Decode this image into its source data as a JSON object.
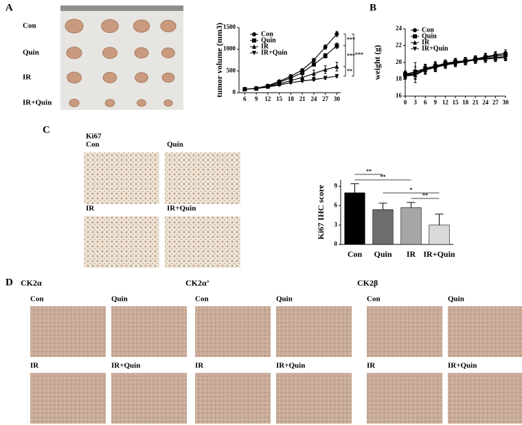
{
  "panel_labels": [
    "A",
    "B",
    "C",
    "D"
  ],
  "photo": {
    "labels": [
      "Con",
      "Quin",
      "IR",
      "IR+Quin"
    ]
  },
  "ki67_images": {
    "title": "Ki67",
    "labels": [
      "Con",
      "Quin",
      "IR",
      "IR+Quin"
    ]
  },
  "ck2_images": [
    {
      "title": "CK2α",
      "labels": [
        "Con",
        "Quin",
        "IR",
        "IR+Quin"
      ]
    },
    {
      "title": "CK2α’",
      "labels": [
        "Con",
        "Quin",
        "IR",
        "IR+Quin"
      ]
    },
    {
      "title": "CK2β",
      "labels": [
        "Con",
        "Quin",
        "IR",
        "IR+Quin"
      ]
    }
  ],
  "chart_data": [
    {
      "type": "line",
      "y_label": "tumor volume (mm3)",
      "x": [
        6,
        9,
        12,
        15,
        18,
        21,
        24,
        27,
        30
      ],
      "xlim": [
        4.5,
        31
      ],
      "xticks": [
        6,
        9,
        12,
        15,
        18,
        21,
        24,
        27,
        30
      ],
      "ylim": [
        0,
        1500
      ],
      "yticks": [
        0,
        500,
        1000,
        1500
      ],
      "series": [
        {
          "name": "Con",
          "color": "#000000",
          "marker": "circle",
          "values": [
            80,
            100,
            160,
            260,
            380,
            520,
            750,
            1050,
            1350
          ],
          "errors": [
            10,
            10,
            15,
            20,
            25,
            30,
            40,
            50,
            60
          ]
        },
        {
          "name": "Quin",
          "color": "#000000",
          "marker": "square",
          "values": [
            80,
            100,
            150,
            240,
            340,
            460,
            650,
            850,
            1080
          ],
          "errors": [
            10,
            10,
            15,
            20,
            25,
            30,
            40,
            50,
            60
          ]
        },
        {
          "name": "IR",
          "color": "#000000",
          "marker": "triangle-up",
          "values": [
            80,
            95,
            140,
            200,
            280,
            350,
            440,
            530,
            600
          ],
          "errors": [
            10,
            10,
            15,
            20,
            40,
            60,
            80,
            90,
            100
          ]
        },
        {
          "name": "IR+Quin",
          "color": "#000000",
          "marker": "triangle-down",
          "values": [
            80,
            95,
            130,
            180,
            230,
            270,
            300,
            340,
            380
          ],
          "errors": [
            10,
            10,
            15,
            15,
            20,
            20,
            25,
            30,
            30
          ]
        }
      ],
      "annotations": [
        "***",
        "***",
        "***",
        "**"
      ]
    },
    {
      "type": "line",
      "y_label": "weight (g)",
      "x": [
        0,
        3,
        6,
        9,
        12,
        15,
        18,
        21,
        24,
        27,
        30
      ],
      "xlim": [
        0,
        30
      ],
      "xticks": [
        0,
        3,
        6,
        9,
        12,
        15,
        18,
        21,
        24,
        27,
        30
      ],
      "ylim": [
        16,
        24
      ],
      "yticks": [
        16,
        18,
        20,
        22,
        24
      ],
      "series": [
        {
          "name": "Con",
          "color": "#000000",
          "marker": "circle",
          "values": [
            18.5,
            18.8,
            19.2,
            19.5,
            19.8,
            20.0,
            20.2,
            20.4,
            20.7,
            20.9,
            21.1
          ],
          "errors": [
            0.4,
            1.2,
            0.6,
            0.5,
            0.5,
            0.4,
            0.4,
            0.4,
            0.4,
            0.4,
            0.4
          ]
        },
        {
          "name": "Quin",
          "color": "#000000",
          "marker": "square",
          "values": [
            18.6,
            18.9,
            19.3,
            19.6,
            19.9,
            20.1,
            20.2,
            20.4,
            20.6,
            20.8,
            20.9
          ],
          "errors": [
            0.4,
            0.6,
            0.5,
            0.5,
            0.4,
            0.4,
            0.4,
            0.4,
            0.4,
            0.4,
            0.4
          ]
        },
        {
          "name": "IR",
          "color": "#000000",
          "marker": "triangle-up",
          "values": [
            18.4,
            18.5,
            19.1,
            19.4,
            19.7,
            19.9,
            20.1,
            20.3,
            20.4,
            20.5,
            20.6
          ],
          "errors": [
            0.4,
            0.5,
            0.5,
            0.5,
            0.4,
            0.4,
            0.4,
            0.4,
            0.4,
            0.4,
            0.4
          ]
        },
        {
          "name": "IR+Quin",
          "color": "#000000",
          "marker": "triangle-down",
          "values": [
            18.5,
            18.6,
            19.2,
            19.5,
            19.8,
            19.9,
            20.1,
            20.3,
            20.5,
            20.6,
            20.7
          ],
          "errors": [
            0.4,
            0.5,
            0.5,
            0.5,
            0.4,
            0.4,
            0.4,
            0.4,
            0.4,
            0.4,
            0.4
          ]
        }
      ]
    },
    {
      "type": "bar",
      "y_label": "Ki67 IHC score",
      "categories": [
        "Con",
        "Quin",
        "IR",
        "IR+Quin"
      ],
      "values": [
        8,
        5.4,
        5.7,
        3
      ],
      "errors": [
        1.4,
        1,
        0.8,
        1.7
      ],
      "colors": [
        "#000000",
        "#6d6d6d",
        "#a6a6a6",
        "#d9d9d9"
      ],
      "ylim": [
        0,
        10
      ],
      "yticks": [
        0,
        3,
        6,
        9
      ],
      "annotations": [
        "**",
        "**",
        "*",
        "**"
      ]
    }
  ]
}
